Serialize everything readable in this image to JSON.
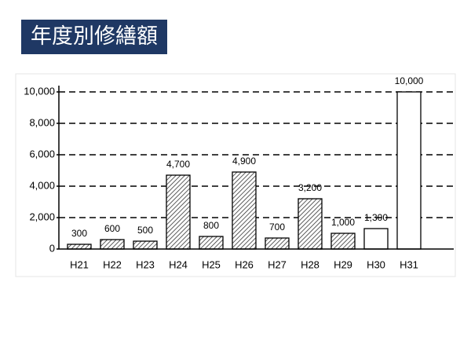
{
  "chart_data": {
    "type": "bar",
    "title": "年度別修繕額",
    "categories": [
      "H21",
      "H22",
      "H23",
      "H24",
      "H25",
      "H26",
      "H27",
      "H28",
      "H29",
      "H30",
      "H31"
    ],
    "values": [
      300,
      600,
      500,
      4700,
      800,
      4900,
      700,
      3200,
      1000,
      1300,
      10000
    ],
    "value_labels": [
      "300",
      "600",
      "500",
      "4,700",
      "800",
      "4,900",
      "700",
      "3,200",
      "1,000",
      "1,300",
      "10,000"
    ],
    "hatched": [
      true,
      true,
      true,
      true,
      true,
      true,
      true,
      true,
      true,
      false,
      false
    ],
    "color": "#000000",
    "ylim": [
      0,
      10000
    ],
    "yticks": [
      0,
      {
        "value": 2000,
        "label": "2,000"
      },
      {
        "value": 4000,
        "label": "4,000"
      },
      {
        "value": 6000,
        "label": "6,000"
      },
      {
        "value": 8000,
        "label": "8,000"
      },
      {
        "value": 10000,
        "label": "10,000"
      }
    ],
    "grid": true
  }
}
